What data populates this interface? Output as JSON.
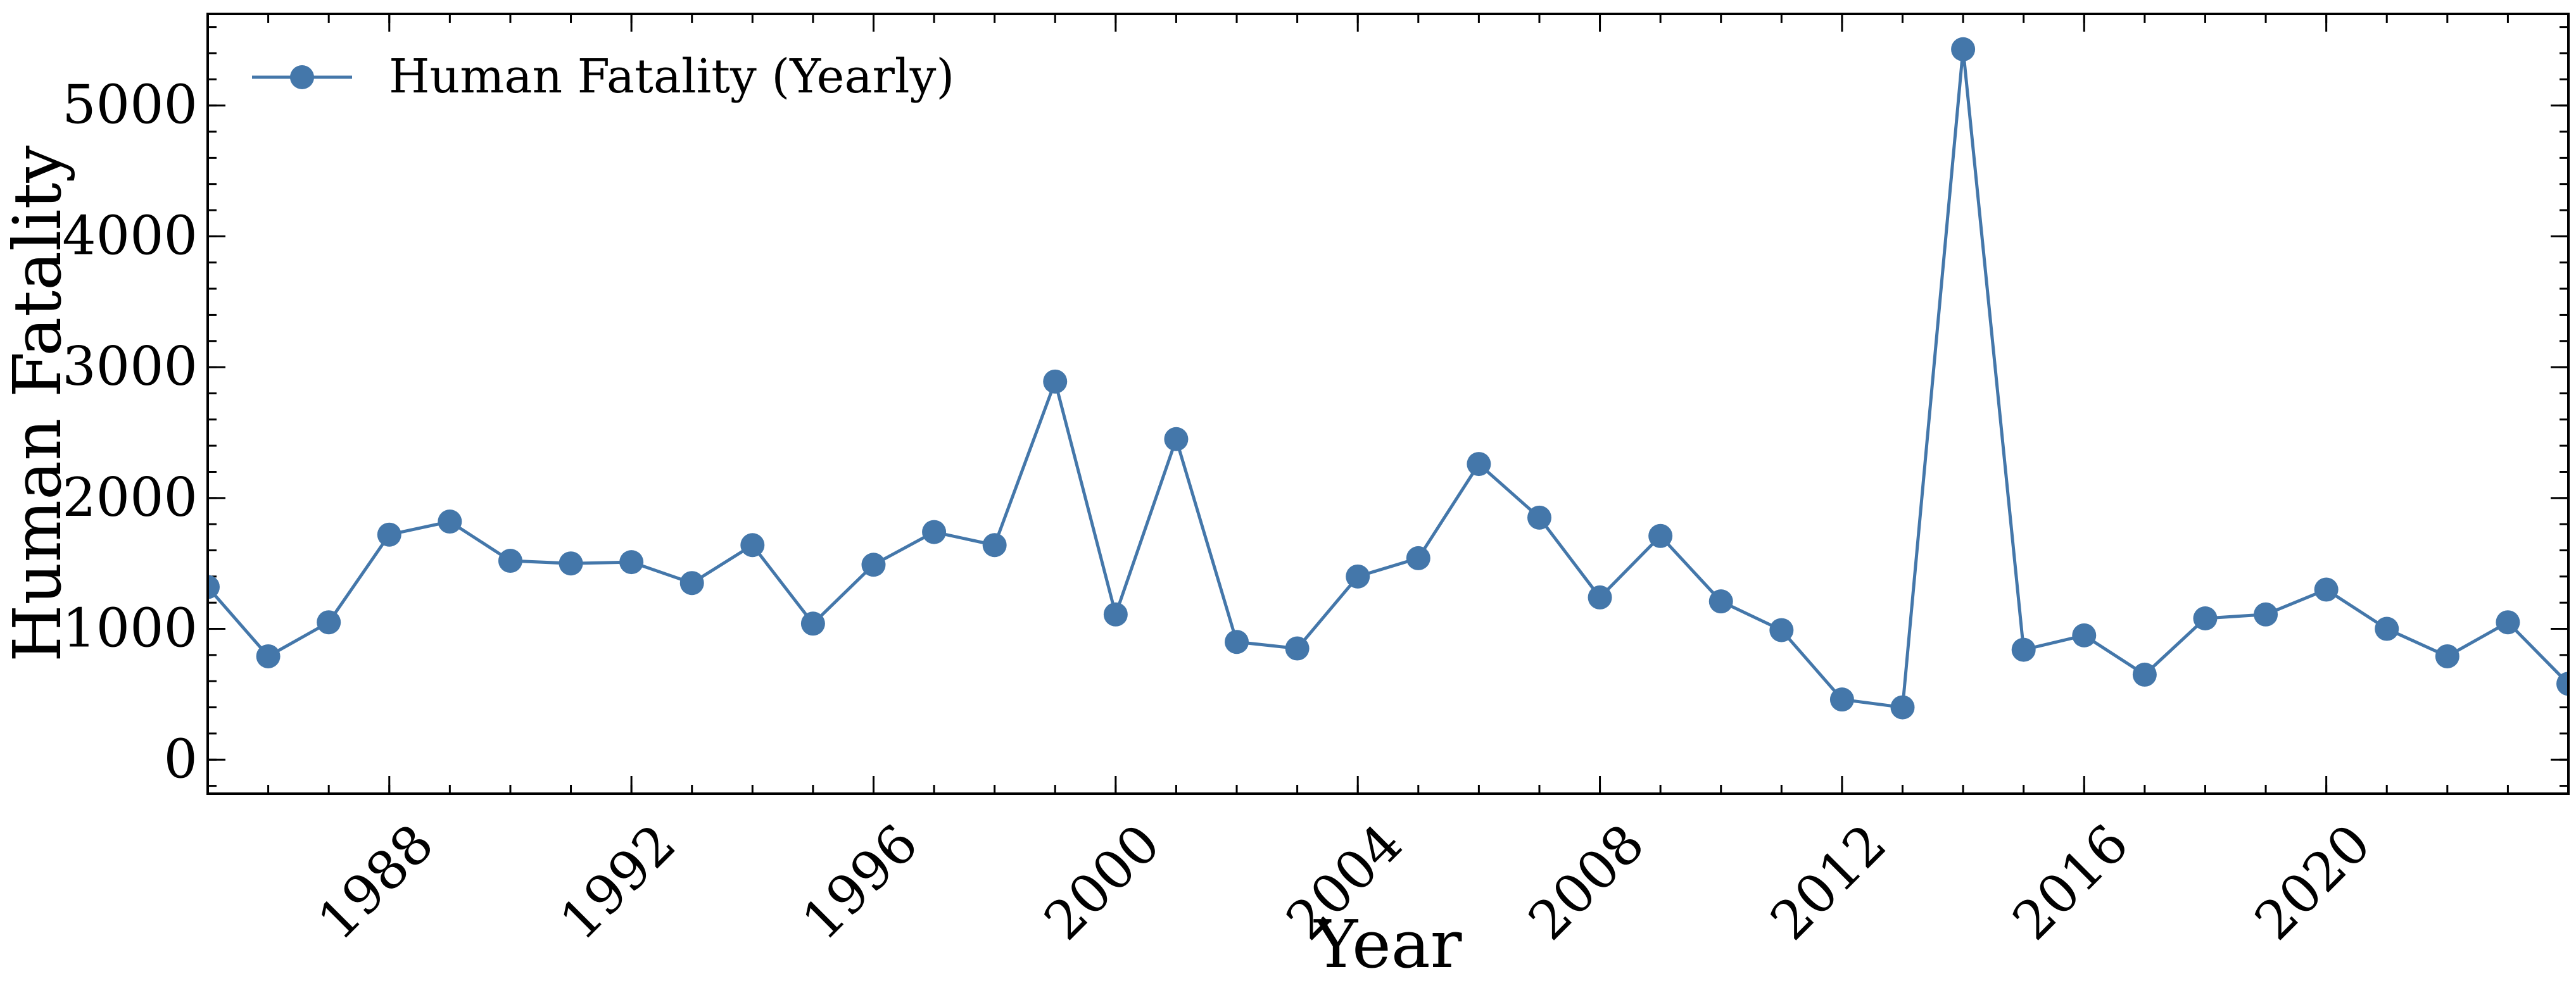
{
  "chart_data": {
    "type": "line",
    "xlabel": "Year",
    "ylabel": "Human Fatality",
    "xlim": [
      1985,
      2024
    ],
    "ylim": [
      -260,
      5700
    ],
    "x_ticks": [
      1988,
      1992,
      1996,
      2000,
      2004,
      2008,
      2012,
      2016,
      2020
    ],
    "y_ticks": [
      0,
      1000,
      2000,
      3000,
      4000,
      5000
    ],
    "grid": false,
    "legend_position": "upper left",
    "series": [
      {
        "name": "Human Fatality (Yearly)",
        "color": "#4477aa",
        "marker": "circle",
        "x": [
          1985,
          1986,
          1987,
          1988,
          1989,
          1990,
          1991,
          1992,
          1993,
          1994,
          1995,
          1996,
          1997,
          1998,
          1999,
          2000,
          2001,
          2002,
          2003,
          2004,
          2005,
          2006,
          2007,
          2008,
          2009,
          2010,
          2011,
          2012,
          2013,
          2014,
          2015,
          2016,
          2017,
          2018,
          2019,
          2020,
          2021,
          2022,
          2023,
          2024
        ],
        "y": [
          1320,
          790,
          1050,
          1720,
          1820,
          1520,
          1500,
          1510,
          1350,
          1640,
          1040,
          1490,
          1740,
          1640,
          2890,
          1110,
          2450,
          900,
          850,
          1400,
          1540,
          2260,
          1850,
          1240,
          1710,
          1210,
          990,
          460,
          400,
          5430,
          840,
          950,
          650,
          1080,
          1110,
          1300,
          1000,
          790,
          1050,
          580
        ]
      }
    ]
  }
}
